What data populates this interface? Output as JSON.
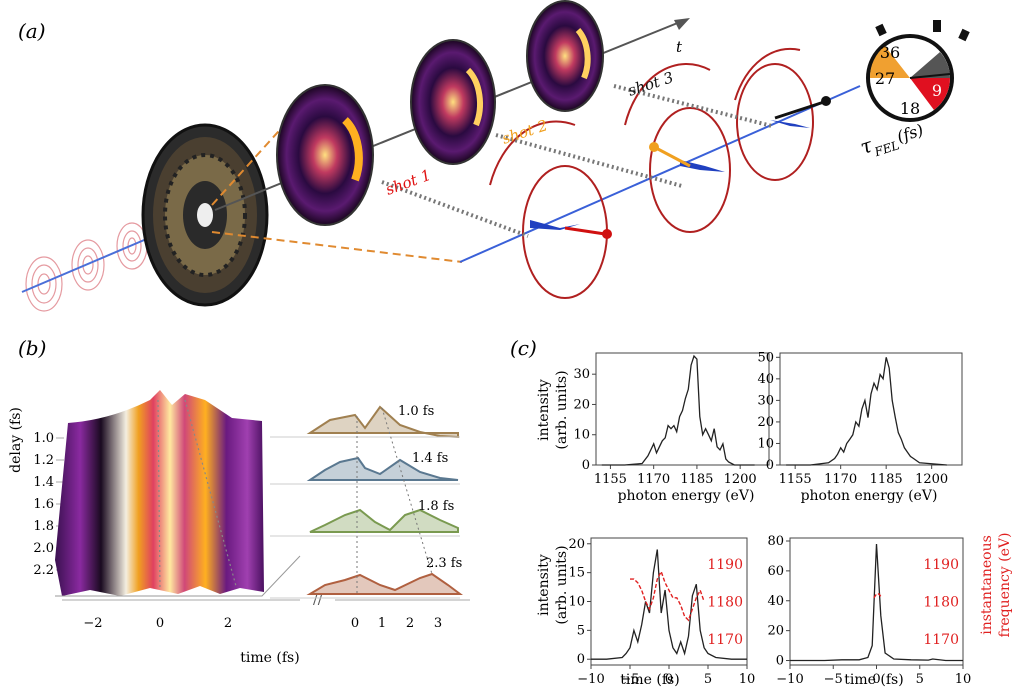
{
  "panel_labels": {
    "a": "(a)",
    "b": "(b)",
    "c": "(c)"
  },
  "panel_a": {
    "axis_label": "t",
    "shots": [
      {
        "label": "shot 1",
        "color": "#e01010"
      },
      {
        "label": "shot 2",
        "color": "#f0a020"
      },
      {
        "label": "shot 3",
        "color": "#111111"
      }
    ],
    "clock": {
      "numbers": [
        "36",
        "27",
        "9",
        "18"
      ],
      "label_main": "τ",
      "label_sub": "FEL",
      "label_tail": " (fs)"
    }
  },
  "panel_b": {
    "ylabel": "delay (fs)",
    "yticks": [
      "1.0",
      "1.2",
      "1.4",
      "1.6",
      "1.8",
      "2.0",
      "2.2"
    ],
    "xlabel": "time (fs)",
    "xticks_left": [
      "−2",
      "0",
      "2"
    ],
    "xticks_right": [
      "0",
      "1",
      "2",
      "3"
    ],
    "traces": [
      {
        "label": "1.0 fs",
        "color": "#a08050"
      },
      {
        "label": "1.4 fs",
        "color": "#5a7890"
      },
      {
        "label": "1.8 fs",
        "color": "#7a9a50"
      },
      {
        "label": "2.3 fs",
        "color": "#b06040"
      }
    ]
  },
  "panel_c": {
    "spectrum_ylabel_line1": "intensity",
    "spectrum_ylabel_line2": "(arb. units)",
    "spectrum_xlabel": "photon energy (eV)",
    "time_ylabel_line1": "intensity",
    "time_ylabel_line2": "(arb. units)",
    "time_xlabel": "time (fs)",
    "freq_ylabel_line1": "instantaneous",
    "freq_ylabel_line2": "frequency (eV)",
    "freq_color": "#e02020"
  },
  "chart_data": [
    {
      "type": "line",
      "xlabel": "photon energy (eV)",
      "ylabel": "intensity (arb. units)",
      "xlim": [
        1150,
        1210
      ],
      "ylim": [
        0,
        37
      ],
      "xticks": [
        1155,
        1170,
        1185,
        1200
      ],
      "yticks": [
        0,
        10,
        20,
        30
      ],
      "x": [
        1152,
        1160,
        1166,
        1168,
        1169,
        1170,
        1171,
        1172,
        1173,
        1174,
        1175,
        1176,
        1177,
        1178,
        1179,
        1180,
        1181,
        1182,
        1183,
        1184,
        1185,
        1186,
        1187,
        1188,
        1189,
        1190,
        1191,
        1192,
        1193,
        1194,
        1195,
        1196,
        1198,
        1205
      ],
      "y": [
        0,
        0,
        0.5,
        3,
        5,
        7,
        4,
        6,
        8,
        9,
        13,
        12,
        13,
        11,
        16,
        18,
        22,
        25,
        33,
        36,
        35,
        16,
        10,
        12,
        10,
        8,
        12,
        6,
        5,
        7,
        2,
        1,
        0,
        0
      ]
    },
    {
      "type": "line",
      "xlabel": "photon energy (eV)",
      "xlim": [
        1150,
        1210
      ],
      "ylim": [
        0,
        52
      ],
      "xticks": [
        1155,
        1170,
        1185,
        1200
      ],
      "yticks": [
        0,
        10,
        20,
        30,
        40,
        50
      ],
      "x": [
        1152,
        1160,
        1166,
        1168,
        1169,
        1170,
        1171,
        1172,
        1173,
        1174,
        1175,
        1176,
        1177,
        1178,
        1179,
        1180,
        1181,
        1182,
        1183,
        1184,
        1185,
        1186,
        1187,
        1188,
        1189,
        1190,
        1191,
        1192,
        1193,
        1194,
        1196,
        1205
      ],
      "y": [
        0,
        0,
        1,
        3,
        5,
        8,
        6,
        10,
        12,
        14,
        20,
        18,
        26,
        30,
        22,
        33,
        38,
        35,
        42,
        40,
        50,
        45,
        30,
        22,
        15,
        12,
        8,
        6,
        4,
        3,
        1,
        0
      ]
    },
    {
      "type": "line",
      "xlabel": "time (fs)",
      "ylabel": "intensity (arb. units)",
      "y2label": "instantaneous frequency (eV)",
      "xlim": [
        -10,
        10
      ],
      "ylim": [
        -1,
        21
      ],
      "y2lim": [
        1163,
        1197
      ],
      "xticks": [
        -10,
        -5,
        0,
        5,
        10
      ],
      "yticks": [
        0,
        5,
        10,
        15,
        20
      ],
      "y2ticks": [
        1170,
        1180,
        1190
      ],
      "series": [
        {
          "x": [
            -10,
            -8,
            -6,
            -5.5,
            -5,
            -4.5,
            -4,
            -3.5,
            -3,
            -2.5,
            -2,
            -1.5,
            -1,
            -0.5,
            0,
            0.5,
            1,
            1.5,
            2,
            2.5,
            3,
            3.5,
            4,
            4.5,
            5,
            6,
            8,
            10
          ],
          "y": [
            0,
            0,
            0.3,
            1,
            2,
            5,
            3,
            6,
            10,
            8,
            15,
            19,
            8,
            12,
            5,
            2,
            1,
            3,
            1,
            4,
            11,
            13,
            5,
            2,
            1,
            0.3,
            0,
            0
          ]
        },
        {
          "x": [
            -5,
            -4.5,
            -4,
            -3.5,
            -3,
            -2.5,
            -2,
            -1.5,
            -1,
            -0.5,
            0,
            0.5,
            1,
            1.5,
            2,
            2.5,
            3,
            3.5,
            4,
            4.5
          ],
          "y": [
            1186,
            1186,
            1185,
            1183,
            1180,
            1178,
            1181,
            1186,
            1188,
            1185,
            1183,
            1181,
            1181,
            1179,
            1176,
            1175,
            1178,
            1181,
            1183,
            1180
          ]
        }
      ]
    },
    {
      "type": "line",
      "xlabel": "time (fs)",
      "xlim": [
        -10,
        10
      ],
      "ylim": [
        -3,
        82
      ],
      "y2lim": [
        1163,
        1197
      ],
      "xticks": [
        -10,
        -5,
        0,
        5,
        10
      ],
      "yticks": [
        0,
        20,
        40,
        60,
        80
      ],
      "y2ticks": [
        1170,
        1180,
        1190
      ],
      "series": [
        {
          "x": [
            -10,
            -6,
            -4,
            -2,
            -1,
            -0.5,
            0,
            0.5,
            1,
            2,
            4,
            6,
            6.5,
            8,
            10
          ],
          "y": [
            0,
            0,
            0.5,
            0.5,
            2,
            10,
            78,
            30,
            5,
            1,
            0.5,
            0.3,
            1,
            0,
            0
          ]
        },
        {
          "x": [
            -0.3,
            0,
            0.3,
            0.6
          ],
          "y": [
            1181,
            1182,
            1182,
            1181
          ]
        }
      ]
    }
  ]
}
